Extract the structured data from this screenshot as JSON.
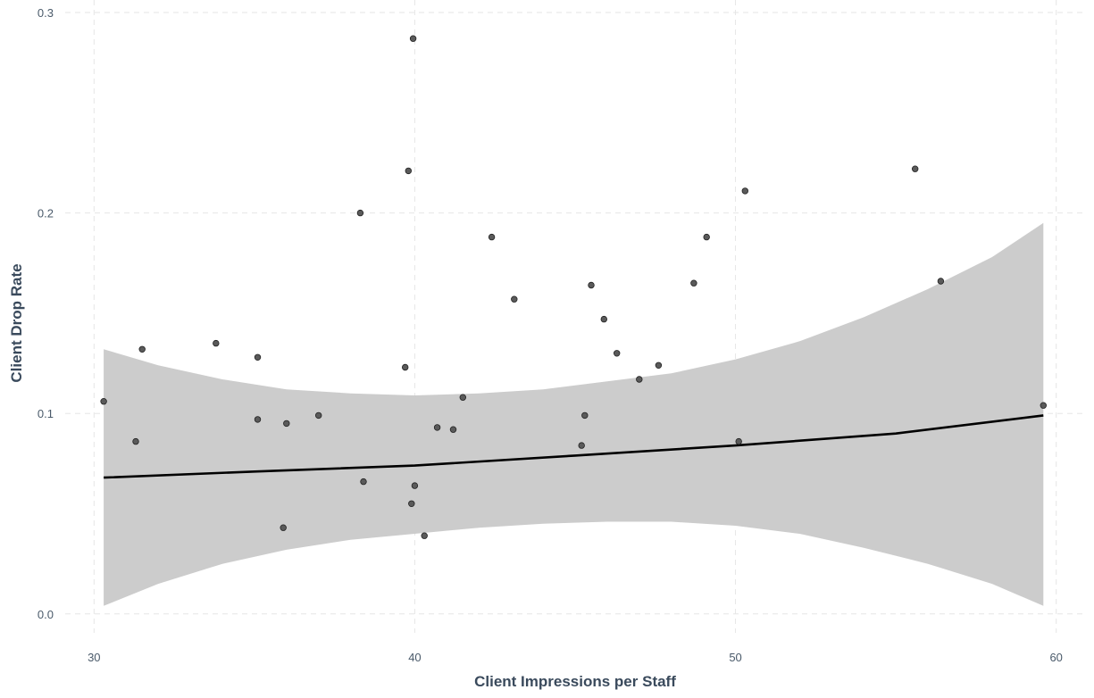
{
  "chart_data": {
    "type": "scatter",
    "title": "",
    "xlabel": "Client Impressions per Staff",
    "ylabel": "Client Drop Rate",
    "xlim": [
      29.1,
      60.9
    ],
    "ylim": [
      -0.013,
      0.3
    ],
    "x_ticks": [
      30,
      40,
      50,
      60
    ],
    "y_ticks": [
      0.0,
      0.1,
      0.2,
      0.3
    ],
    "x_tick_labels": [
      "30",
      "40",
      "50",
      "60"
    ],
    "y_tick_labels": [
      "0.0",
      "0.1",
      "0.2",
      "0.3"
    ],
    "grid": true,
    "legend": "none",
    "colors": {
      "points": "#5a5a5a",
      "point_outline": "#222222",
      "fit_line": "#000000",
      "confidence_band": "#cccccc",
      "grid": "#e6e6e6"
    },
    "points": [
      {
        "x": 30.3,
        "y": 0.106
      },
      {
        "x": 31.3,
        "y": 0.086
      },
      {
        "x": 31.5,
        "y": 0.132
      },
      {
        "x": 33.8,
        "y": 0.135
      },
      {
        "x": 35.1,
        "y": 0.128
      },
      {
        "x": 35.1,
        "y": 0.097
      },
      {
        "x": 35.9,
        "y": 0.043
      },
      {
        "x": 36.0,
        "y": 0.095
      },
      {
        "x": 37.0,
        "y": 0.099
      },
      {
        "x": 38.3,
        "y": 0.2
      },
      {
        "x": 38.4,
        "y": 0.066
      },
      {
        "x": 39.7,
        "y": 0.123
      },
      {
        "x": 39.8,
        "y": 0.221
      },
      {
        "x": 39.9,
        "y": 0.055
      },
      {
        "x": 39.95,
        "y": 0.287
      },
      {
        "x": 40.0,
        "y": 0.064
      },
      {
        "x": 40.3,
        "y": 0.039
      },
      {
        "x": 40.7,
        "y": 0.093
      },
      {
        "x": 41.2,
        "y": 0.092
      },
      {
        "x": 41.5,
        "y": 0.108
      },
      {
        "x": 42.4,
        "y": 0.188
      },
      {
        "x": 43.1,
        "y": 0.157
      },
      {
        "x": 45.2,
        "y": 0.084
      },
      {
        "x": 45.3,
        "y": 0.099
      },
      {
        "x": 45.5,
        "y": 0.164
      },
      {
        "x": 45.9,
        "y": 0.147
      },
      {
        "x": 46.3,
        "y": 0.13
      },
      {
        "x": 47.0,
        "y": 0.117
      },
      {
        "x": 47.6,
        "y": 0.124
      },
      {
        "x": 48.7,
        "y": 0.165
      },
      {
        "x": 49.1,
        "y": 0.188
      },
      {
        "x": 50.1,
        "y": 0.086
      },
      {
        "x": 50.3,
        "y": 0.211
      },
      {
        "x": 55.6,
        "y": 0.222
      },
      {
        "x": 56.4,
        "y": 0.166
      },
      {
        "x": 59.6,
        "y": 0.104
      }
    ],
    "fit_line": {
      "method": "linear",
      "x": [
        30.3,
        35,
        40,
        45,
        50,
        55,
        59.6
      ],
      "y": [
        0.068,
        0.071,
        0.074,
        0.079,
        0.084,
        0.09,
        0.099
      ]
    },
    "confidence_band": {
      "x": [
        30.3,
        32,
        34,
        36,
        38,
        40,
        42,
        44,
        46,
        48,
        50,
        52,
        54,
        56,
        58,
        59.6
      ],
      "lower": [
        0.004,
        0.015,
        0.025,
        0.032,
        0.037,
        0.04,
        0.043,
        0.045,
        0.046,
        0.046,
        0.044,
        0.04,
        0.033,
        0.025,
        0.015,
        0.004
      ],
      "upper": [
        0.132,
        0.124,
        0.117,
        0.112,
        0.11,
        0.109,
        0.11,
        0.112,
        0.116,
        0.12,
        0.127,
        0.136,
        0.148,
        0.162,
        0.178,
        0.195
      ]
    }
  }
}
